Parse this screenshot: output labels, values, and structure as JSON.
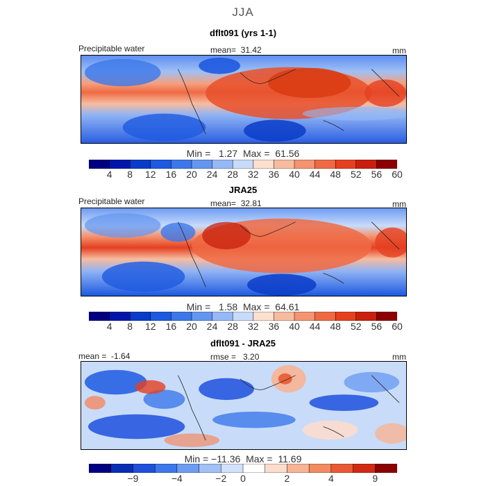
{
  "figure": {
    "season": "JJA"
  },
  "panels": [
    {
      "title": "dflt091 (yrs 1-1)",
      "left_label": "Precipitable water",
      "mean_label": "mean=",
      "mean_value": "31.42",
      "units": "mm",
      "min_label": "Min =",
      "min_value": "1.27",
      "max_label": "Max =",
      "max_value": "61.56"
    },
    {
      "title": "JRA25",
      "left_label": "Precipitable water",
      "mean_label": "mean=",
      "mean_value": "32.81",
      "units": "mm",
      "min_label": "Min =",
      "min_value": "1.58",
      "max_label": "Max =",
      "max_value": "64.61"
    },
    {
      "title": "dflt091 - JRA25",
      "mean_label": "mean =",
      "mean_value": "-1.64",
      "rmse_label": "rmse =",
      "rmse_value": "3.20",
      "units": "mm",
      "min_label": "Min =",
      "min_value": "−11.36",
      "max_label": "Max =",
      "max_value": "11.69"
    }
  ],
  "colorbars": {
    "absolute": {
      "colors": [
        "#000080",
        "#0016a8",
        "#0a3cc8",
        "#1e5ae0",
        "#3c78ea",
        "#6496f0",
        "#96b9f5",
        "#c8dcfa",
        "#fbe0cf",
        "#f7bca0",
        "#f49470",
        "#ef6a44",
        "#e54020",
        "#c8200c",
        "#8b0000"
      ],
      "tick_labels": [
        "4",
        "8",
        "12",
        "16",
        "20",
        "24",
        "28",
        "32",
        "36",
        "40",
        "44",
        "48",
        "52",
        "56",
        "60"
      ]
    },
    "difference": {
      "colors": [
        "#000080",
        "#0a2db4",
        "#1e50dc",
        "#3c78ea",
        "#6e9cf2",
        "#a0c0f6",
        "#d2e2fb",
        "#ffffff",
        "#fbdccd",
        "#f7b494",
        "#f28a62",
        "#e95a34",
        "#d22a12",
        "#8b0000"
      ],
      "tick_labels": [
        "−9",
        "−4",
        "−2",
        "0",
        "2",
        "4",
        "9"
      ]
    }
  }
}
